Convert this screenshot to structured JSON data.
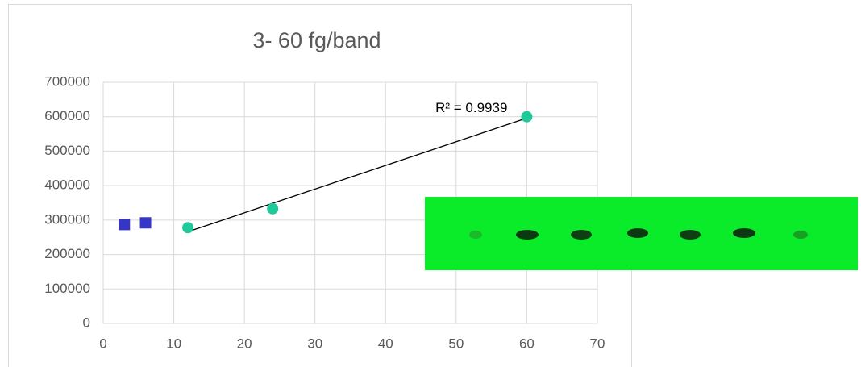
{
  "chart_data": {
    "type": "scatter",
    "title": "3- 60 fg/band",
    "xlim": [
      0,
      70
    ],
    "xticks": [
      0,
      10,
      20,
      30,
      40,
      50,
      60,
      70
    ],
    "ylim": [
      0,
      700000
    ],
    "yticks": [
      0,
      100000,
      200000,
      300000,
      400000,
      500000,
      600000,
      700000
    ],
    "grid": true,
    "series": [
      {
        "color": "#3636c6",
        "marker": "square",
        "x": [
          3,
          6
        ],
        "values": [
          287000,
          292000
        ]
      },
      {
        "color": "#1fc99a",
        "marker": "circle",
        "x": [
          12,
          24,
          60
        ],
        "values": [
          278000,
          333000,
          600000
        ],
        "trendline": true,
        "trendline_label": "R² = 0.9939"
      }
    ]
  }
}
